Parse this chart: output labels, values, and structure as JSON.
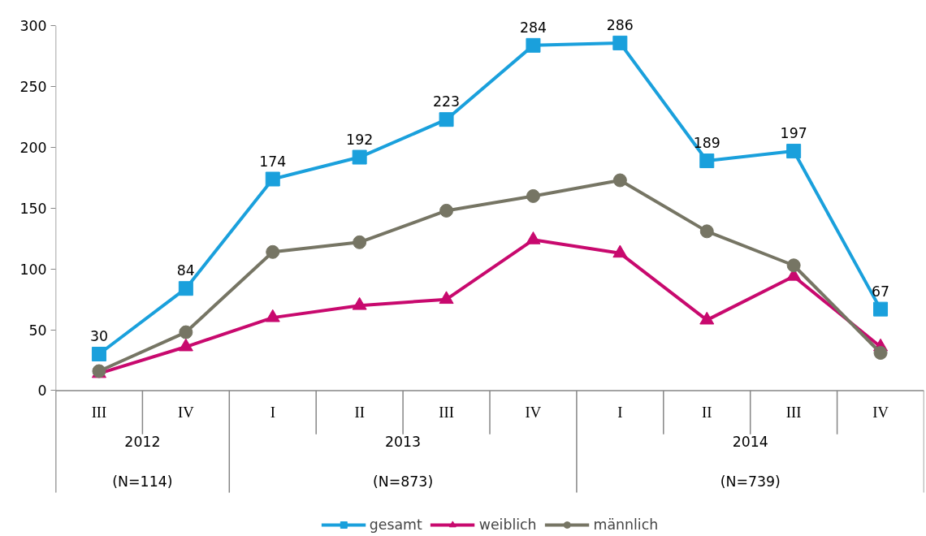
{
  "chart_data": {
    "type": "line",
    "categories": [
      "III",
      "IV",
      "I",
      "II",
      "III",
      "IV",
      "I",
      "II",
      "III",
      "IV"
    ],
    "series": [
      {
        "name": "gesamt",
        "color": "#1aa0dc",
        "marker": "square",
        "values": [
          30,
          84,
          174,
          192,
          223,
          284,
          286,
          189,
          197,
          67
        ],
        "value_labels": [
          "30",
          "84",
          "174",
          "192",
          "223",
          "284",
          "286",
          "189",
          "197",
          "67"
        ]
      },
      {
        "name": "weiblich",
        "color": "#c8096e",
        "marker": "triangle",
        "values": [
          14,
          36,
          60,
          70,
          75,
          124,
          113,
          58,
          94,
          36
        ]
      },
      {
        "name": "männlich",
        "color": "#767564",
        "marker": "circle",
        "values": [
          16,
          48,
          114,
          122,
          148,
          160,
          173,
          131,
          103,
          31
        ]
      }
    ],
    "ylim": [
      0,
      300
    ],
    "yticks": [
      0,
      50,
      100,
      150,
      200,
      250,
      300
    ],
    "grid": false,
    "legend": "bottom",
    "line_style": "solid",
    "annotations": [
      "2012",
      "(N=114)",
      "2013",
      "(N=873)",
      "2014",
      "(N=739)"
    ]
  }
}
